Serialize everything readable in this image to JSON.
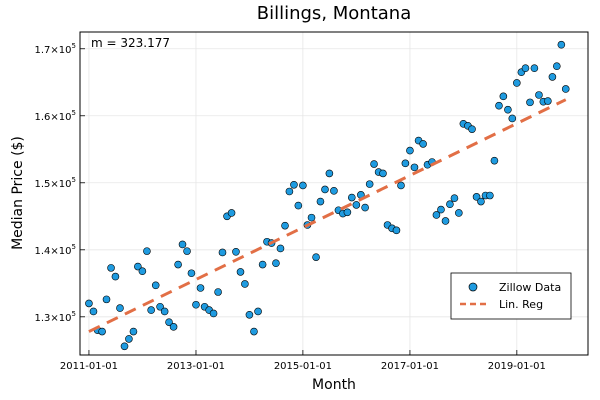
{
  "chart_data": {
    "type": "scatter",
    "title": "Billings, Montana",
    "xlabel": "Month",
    "ylabel": "Median Price ($)",
    "x_ticks": [
      "2011-01-01",
      "2013-01-01",
      "2015-01-01",
      "2017-01-01",
      "2019-01-01"
    ],
    "y_ticks": [
      {
        "value": 130000,
        "base": "1.3×10",
        "exp": "5"
      },
      {
        "value": 140000,
        "base": "1.4×10",
        "exp": "5"
      },
      {
        "value": 150000,
        "base": "1.5×10",
        "exp": "5"
      },
      {
        "value": 160000,
        "base": "1.6×10",
        "exp": "5"
      },
      {
        "value": 170000,
        "base": "1.7×10",
        "exp": "5"
      }
    ],
    "xlim": [
      "2010-11-01",
      "2020-05-01"
    ],
    "ylim": [
      124300,
      172500
    ],
    "grid": true,
    "legend_position": "bottom-right",
    "annotation": "m = 323.177",
    "series": [
      {
        "name": "Zillow Data",
        "kind": "scatter",
        "color": "#1f9be0",
        "points": [
          [
            "2011-01-01",
            132000
          ],
          [
            "2011-02-01",
            130800
          ],
          [
            "2011-03-01",
            128000
          ],
          [
            "2011-04-01",
            127800
          ],
          [
            "2011-05-01",
            132600
          ],
          [
            "2011-06-01",
            137300
          ],
          [
            "2011-07-01",
            136000
          ],
          [
            "2011-08-01",
            131300
          ],
          [
            "2011-09-01",
            125600
          ],
          [
            "2011-10-01",
            126700
          ],
          [
            "2011-11-01",
            127800
          ],
          [
            "2011-12-01",
            137500
          ],
          [
            "2012-01-01",
            136800
          ],
          [
            "2012-02-01",
            139800
          ],
          [
            "2012-03-01",
            131000
          ],
          [
            "2012-04-01",
            134700
          ],
          [
            "2012-05-01",
            131500
          ],
          [
            "2012-06-01",
            130800
          ],
          [
            "2012-07-01",
            129200
          ],
          [
            "2012-08-01",
            128500
          ],
          [
            "2012-09-01",
            137800
          ],
          [
            "2012-10-01",
            140800
          ],
          [
            "2012-11-01",
            139800
          ],
          [
            "2012-12-01",
            136500
          ],
          [
            "2013-01-01",
            131800
          ],
          [
            "2013-02-01",
            134300
          ],
          [
            "2013-03-01",
            131500
          ],
          [
            "2013-04-01",
            131000
          ],
          [
            "2013-05-01",
            130500
          ],
          [
            "2013-06-01",
            133700
          ],
          [
            "2013-07-01",
            139600
          ],
          [
            "2013-08-01",
            145000
          ],
          [
            "2013-09-01",
            145500
          ],
          [
            "2013-10-01",
            139700
          ],
          [
            "2013-11-01",
            136700
          ],
          [
            "2013-12-01",
            134900
          ],
          [
            "2014-01-01",
            130300
          ],
          [
            "2014-02-01",
            127800
          ],
          [
            "2014-03-01",
            130800
          ],
          [
            "2014-04-01",
            137800
          ],
          [
            "2014-05-01",
            141200
          ],
          [
            "2014-06-01",
            141000
          ],
          [
            "2014-07-01",
            138000
          ],
          [
            "2014-08-01",
            140200
          ],
          [
            "2014-09-01",
            143600
          ],
          [
            "2014-10-01",
            148700
          ],
          [
            "2014-11-01",
            149700
          ],
          [
            "2014-12-01",
            146600
          ],
          [
            "2015-01-01",
            149600
          ],
          [
            "2015-02-01",
            143700
          ],
          [
            "2015-03-01",
            144800
          ],
          [
            "2015-04-01",
            138900
          ],
          [
            "2015-05-01",
            147200
          ],
          [
            "2015-06-01",
            149000
          ],
          [
            "2015-07-01",
            151400
          ],
          [
            "2015-08-01",
            148800
          ],
          [
            "2015-09-01",
            145900
          ],
          [
            "2015-10-01",
            145400
          ],
          [
            "2015-11-01",
            145600
          ],
          [
            "2015-12-01",
            147800
          ],
          [
            "2016-01-01",
            146700
          ],
          [
            "2016-02-01",
            148200
          ],
          [
            "2016-03-01",
            146300
          ],
          [
            "2016-04-01",
            149800
          ],
          [
            "2016-05-01",
            152800
          ],
          [
            "2016-06-01",
            151600
          ],
          [
            "2016-07-01",
            151400
          ],
          [
            "2016-08-01",
            143700
          ],
          [
            "2016-09-01",
            143200
          ],
          [
            "2016-10-01",
            142900
          ],
          [
            "2016-11-01",
            149600
          ],
          [
            "2016-12-01",
            152900
          ],
          [
            "2017-01-01",
            154800
          ],
          [
            "2017-02-01",
            152300
          ],
          [
            "2017-03-01",
            156300
          ],
          [
            "2017-04-01",
            155800
          ],
          [
            "2017-05-01",
            152700
          ],
          [
            "2017-06-01",
            153100
          ],
          [
            "2017-07-01",
            145200
          ],
          [
            "2017-08-01",
            146000
          ],
          [
            "2017-09-01",
            144300
          ],
          [
            "2017-10-01",
            146800
          ],
          [
            "2017-11-01",
            147700
          ],
          [
            "2017-12-01",
            145500
          ],
          [
            "2018-01-01",
            158800
          ],
          [
            "2018-02-01",
            158500
          ],
          [
            "2018-03-01",
            158000
          ],
          [
            "2018-04-01",
            147900
          ],
          [
            "2018-05-01",
            147200
          ],
          [
            "2018-06-01",
            148100
          ],
          [
            "2018-07-01",
            148100
          ],
          [
            "2018-08-01",
            153300
          ],
          [
            "2018-09-01",
            161500
          ],
          [
            "2018-10-01",
            162900
          ],
          [
            "2018-11-01",
            160900
          ],
          [
            "2018-12-01",
            159600
          ],
          [
            "2019-01-01",
            164900
          ],
          [
            "2019-02-01",
            166500
          ],
          [
            "2019-03-01",
            167100
          ],
          [
            "2019-04-01",
            162000
          ],
          [
            "2019-05-01",
            167100
          ],
          [
            "2019-06-01",
            163100
          ],
          [
            "2019-07-01",
            162100
          ],
          [
            "2019-08-01",
            162200
          ],
          [
            "2019-09-01",
            165800
          ],
          [
            "2019-10-01",
            167400
          ],
          [
            "2019-11-01",
            170600
          ],
          [
            "2019-12-01",
            164000
          ]
        ]
      },
      {
        "name": "Lin. Reg",
        "kind": "line",
        "dashed": true,
        "color": "#e26f46",
        "points": [
          [
            "2011-01-01",
            127800
          ],
          [
            "2019-12-01",
            162400
          ]
        ]
      }
    ]
  }
}
